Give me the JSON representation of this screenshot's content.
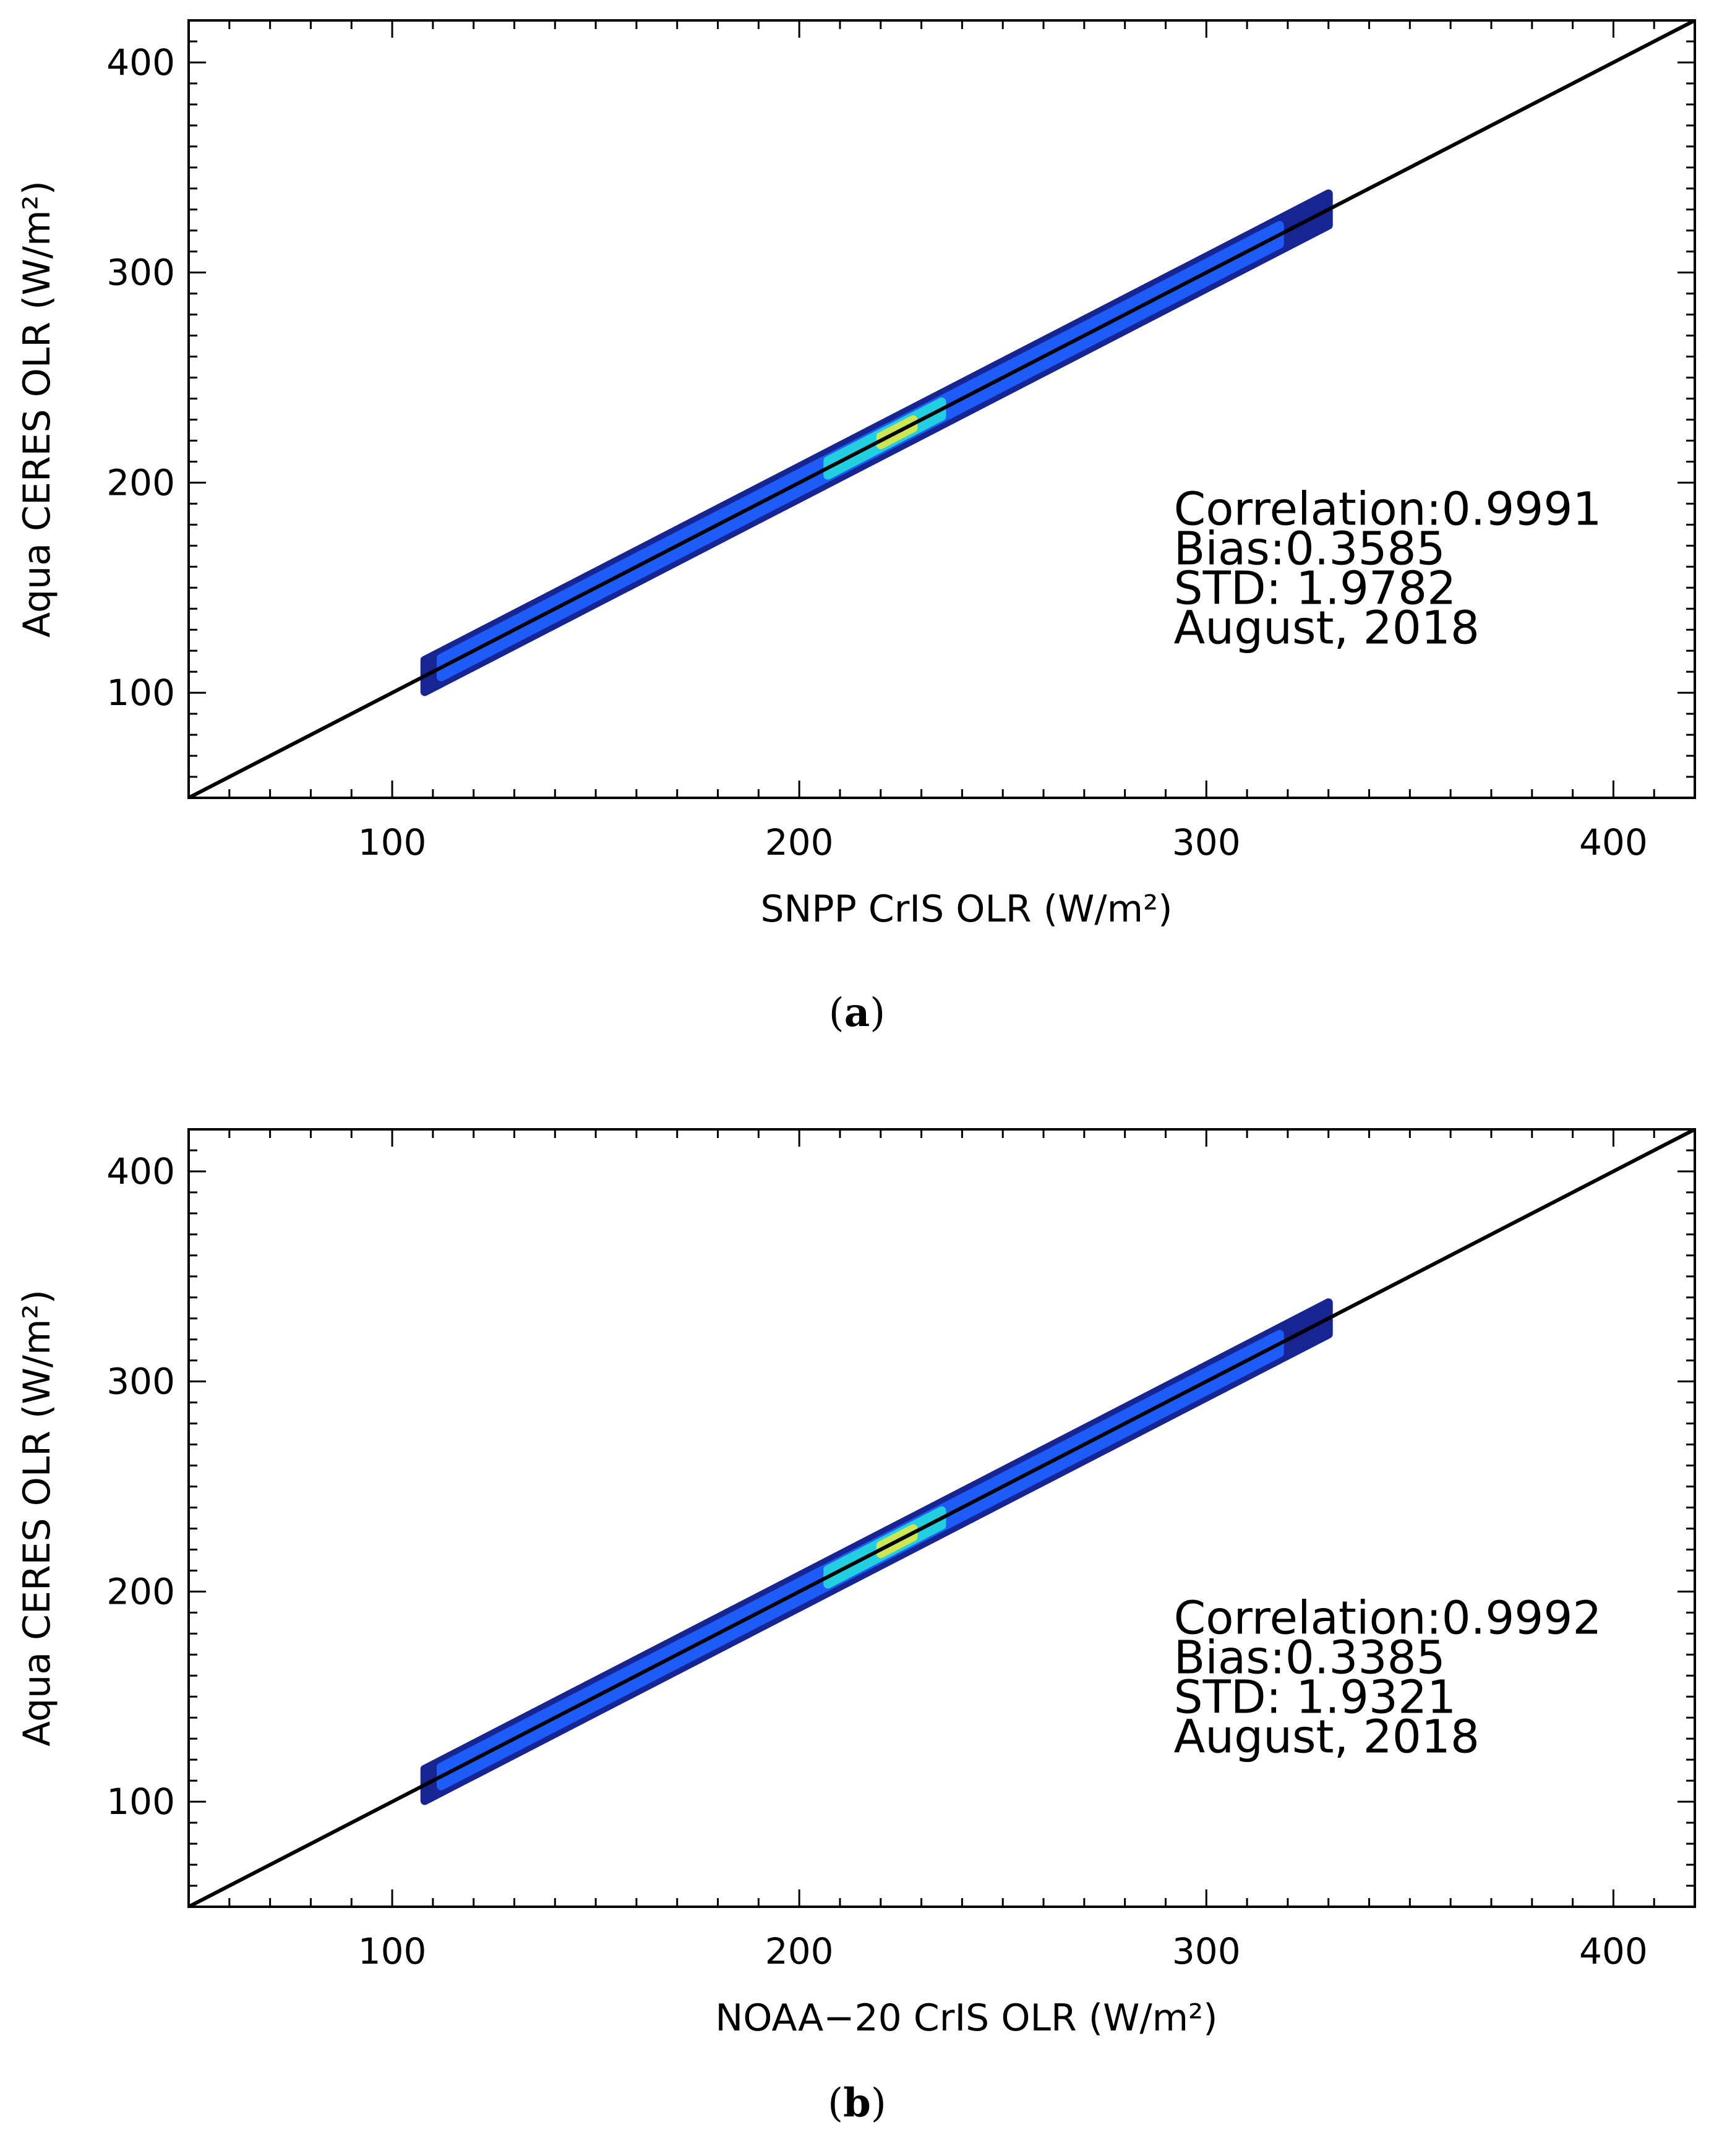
{
  "chart_data": [
    {
      "type": "scatter",
      "subtype": "density-scatter",
      "panel_label": "a",
      "xlabel": "SNPP CrIS OLR (W/m²)",
      "ylabel": "Aqua CERES OLR (W/m²)",
      "xlim": [
        50,
        420
      ],
      "ylim": [
        50,
        420
      ],
      "xticks": [
        100,
        200,
        300,
        400
      ],
      "yticks": [
        100,
        200,
        300,
        400
      ],
      "reference_line": {
        "name": "1:1 line",
        "slope": 1,
        "intercept": 0
      },
      "point_range": {
        "min": 108,
        "max": 330
      },
      "density_peak": 225,
      "stats": [
        "Correlation:0.9991",
        "Bias:0.3585",
        "STD: 1.9782",
        "August, 2018"
      ],
      "correlation": 0.9991,
      "bias": 0.3585,
      "std": 1.9782
    },
    {
      "type": "scatter",
      "subtype": "density-scatter",
      "panel_label": "b",
      "xlabel": "NOAA−20 CrIS OLR (W/m²)",
      "ylabel": "Aqua CERES OLR (W/m²)",
      "xlim": [
        50,
        420
      ],
      "ylim": [
        50,
        420
      ],
      "xticks": [
        100,
        200,
        300,
        400
      ],
      "yticks": [
        100,
        200,
        300,
        400
      ],
      "reference_line": {
        "name": "1:1 line",
        "slope": 1,
        "intercept": 0
      },
      "point_range": {
        "min": 108,
        "max": 330
      },
      "density_peak": 225,
      "stats": [
        "Correlation:0.9992",
        "Bias:0.3385",
        "STD: 1.9321",
        "August, 2018"
      ],
      "correlation": 0.9992,
      "bias": 0.3385,
      "std": 1.9321
    }
  ],
  "colors": {
    "axis": "#000000",
    "one_to_one_line": "#000000",
    "density_low": "#0a1a8c",
    "density_mid": "#1f5fff",
    "density_high": "#22d6e0",
    "density_peak": "#d7e84a"
  }
}
